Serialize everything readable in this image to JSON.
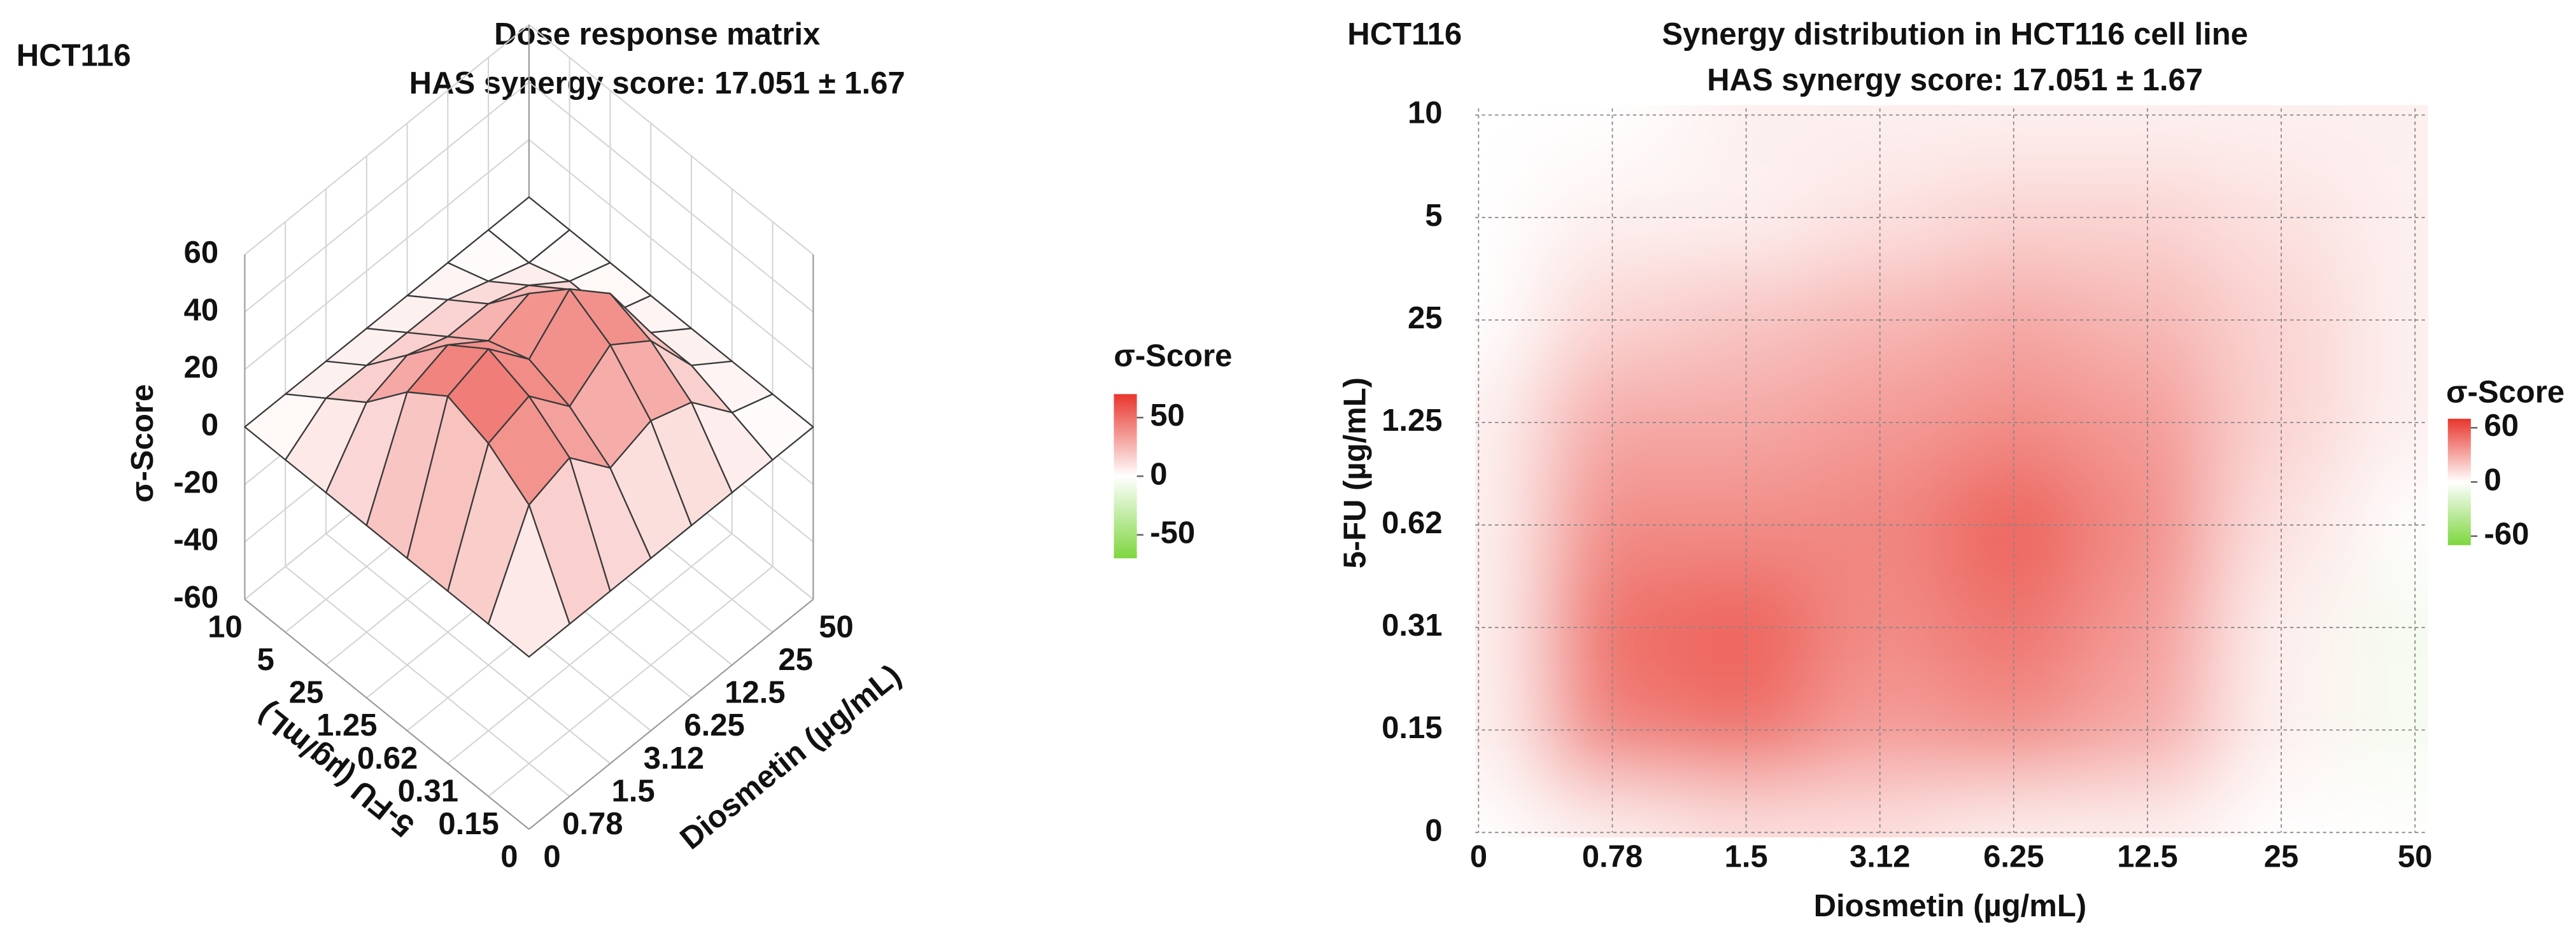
{
  "chart_data": [
    {
      "type": "surface3d",
      "label": "HCT116",
      "title": "Dose response matrix",
      "subtitle": "HAS synergy score: 17.051 ± 1.67",
      "x_label": "Diosmetin (µg/mL)",
      "y_label": "5-FU (µg/mL)",
      "z_label": "σ-Score",
      "x_categories": [
        "0",
        "0.78",
        "1.5",
        "3.12",
        "6.25",
        "12.5",
        "25",
        "50"
      ],
      "y_categories": [
        "0",
        "0.15",
        "0.31",
        "0.62",
        "1.25",
        "25",
        "5",
        "10"
      ],
      "z": [
        [
          0,
          0,
          0,
          0,
          0,
          0,
          0,
          0
        ],
        [
          0,
          30,
          35,
          20,
          25,
          20,
          5,
          0
        ],
        [
          0,
          40,
          45,
          30,
          40,
          30,
          10,
          0
        ],
        [
          0,
          45,
          50,
          35,
          48,
          35,
          10,
          0
        ],
        [
          0,
          35,
          40,
          30,
          35,
          25,
          5,
          0
        ],
        [
          0,
          20,
          25,
          20,
          20,
          15,
          5,
          0
        ],
        [
          0,
          10,
          10,
          10,
          10,
          5,
          0,
          0
        ],
        [
          0,
          0,
          0,
          0,
          0,
          0,
          0,
          0
        ]
      ],
      "zlim": [
        -60,
        60
      ],
      "zticks": [
        60,
        40,
        20,
        0,
        -20,
        -40,
        -60
      ],
      "colors": {
        "positive": "#e8352c",
        "neutral": "#ffffff",
        "negative": "#7ed63f"
      },
      "colorbar": {
        "title": "σ-Score",
        "lim": [
          -70,
          70
        ],
        "ticks": [
          50,
          0,
          -50
        ]
      }
    },
    {
      "type": "contour",
      "label": "HCT116",
      "title": "Synergy distribution in HCT116 cell line",
      "subtitle": "HAS synergy score: 17.051 ± 1.67",
      "x_label": "Diosmetin (µg/mL)",
      "y_label": "5-FU (µg/mL)",
      "x_categories": [
        "0",
        "0.78",
        "1.5",
        "3.12",
        "6.25",
        "12.5",
        "25",
        "50"
      ],
      "y_categories": [
        "0",
        "0.15",
        "0.31",
        "0.62",
        "1.25",
        "25",
        "5",
        "10"
      ],
      "z": [
        [
          0,
          5,
          10,
          10,
          5,
          5,
          0,
          0
        ],
        [
          5,
          45,
          50,
          35,
          40,
          30,
          5,
          -5
        ],
        [
          5,
          50,
          55,
          40,
          48,
          35,
          5,
          -5
        ],
        [
          5,
          40,
          40,
          42,
          55,
          40,
          10,
          0
        ],
        [
          5,
          30,
          30,
          35,
          40,
          35,
          15,
          5
        ],
        [
          0,
          15,
          20,
          25,
          30,
          25,
          15,
          5
        ],
        [
          0,
          5,
          5,
          10,
          15,
          15,
          10,
          5
        ],
        [
          0,
          0,
          5,
          5,
          5,
          5,
          5,
          5
        ]
      ],
      "grid": true,
      "colors": {
        "positive": "#e8352c",
        "neutral": "#ffffff",
        "negative": "#7ed63f"
      },
      "colorbar": {
        "title": "σ-Score",
        "lim": [
          -70,
          70
        ],
        "ticks": [
          60,
          0,
          -60
        ]
      }
    }
  ]
}
